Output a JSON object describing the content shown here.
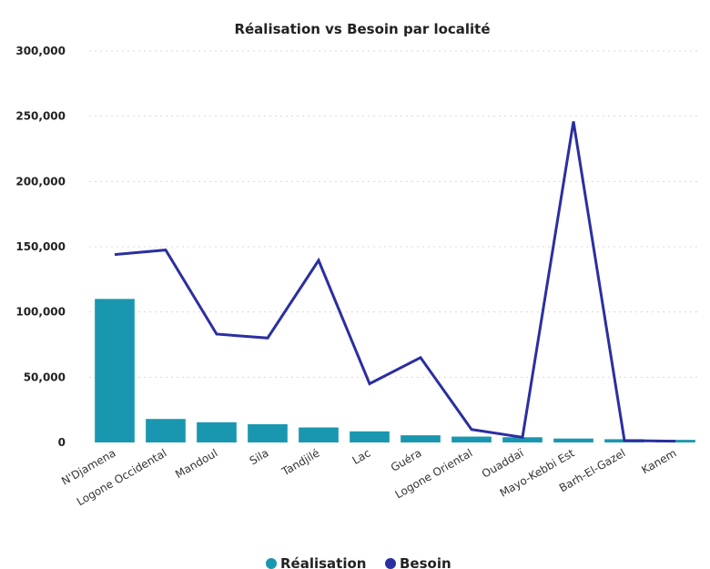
{
  "chart_data": {
    "type": "bar",
    "title": "Réalisation vs Besoin par localité",
    "xlabel": "",
    "ylabel": "",
    "ylim": [
      0,
      300000
    ],
    "yticks": [
      "0",
      "50,000",
      "100,000",
      "150,000",
      "200,000",
      "250,000",
      "300,000"
    ],
    "ytick_values": [
      0,
      50000,
      100000,
      150000,
      200000,
      250000,
      300000
    ],
    "grid": true,
    "legend_position": "bottom",
    "categories": [
      "N'Djamena",
      "Logone Occidental",
      "Mandoul",
      "Sila",
      "Tandjilé",
      "Lac",
      "Guéra",
      "Logone Oriental",
      "Ouaddaï",
      "Mayo-Kebbi Est",
      "Barh-El-Gazel",
      "Kanem"
    ],
    "series": [
      {
        "name": "Réalisation",
        "type": "bar",
        "color": "#1a97b0",
        "values": [
          110000,
          18000,
          15500,
          14000,
          11500,
          8500,
          5500,
          4500,
          4000,
          3000,
          2500,
          2000
        ]
      },
      {
        "name": "Besoin",
        "type": "line",
        "color": "#2b2fa0",
        "values": [
          144000,
          147500,
          83000,
          80000,
          139500,
          45000,
          65000,
          10000,
          4000,
          246000,
          1500,
          1000
        ]
      }
    ]
  }
}
